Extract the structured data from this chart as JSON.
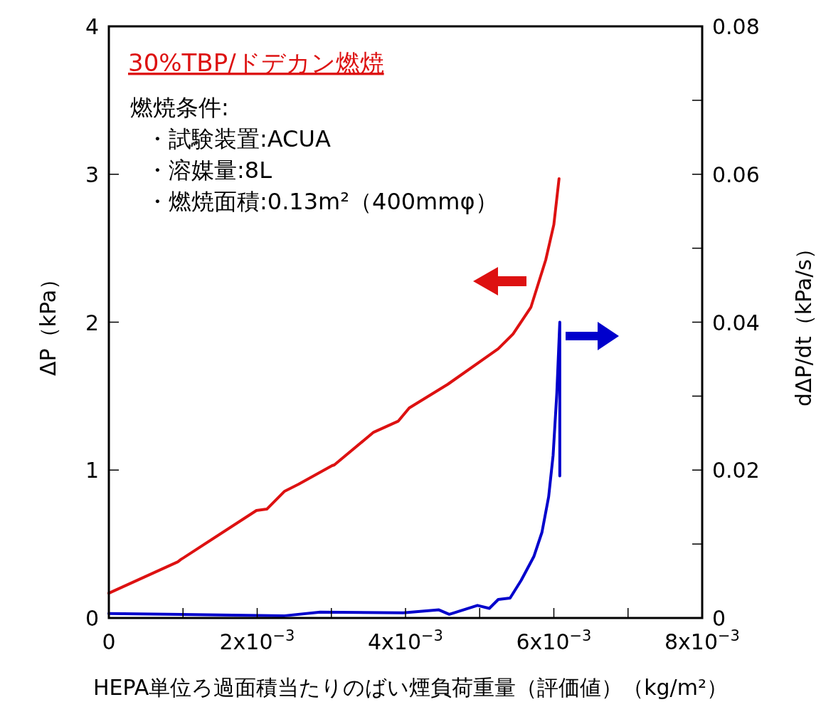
{
  "chart_data": {
    "type": "line",
    "xlabel": "HEPA単位ろ過面積当たりのばい煙負荷重量（評価値）（kg/m²）",
    "ylabel": "ΔP（kPa）",
    "y2label": "dΔP/dt（kPa/s）",
    "title": "30%TBP/ドデカン燃焼",
    "annotations": [
      "燃焼条件:",
      "・試験装置:ACUA",
      "・溶媒量:8L",
      "・燃焼面積:0.13m²（400mmφ）"
    ],
    "xlim": [
      0,
      0.008
    ],
    "xticks": [
      0,
      {
        "value": 0.001,
        "label": null
      },
      {
        "value": 0.002,
        "label": "2x10$^{−3}$"
      },
      {
        "value": 0.003,
        "label": null
      },
      {
        "value": 0.004,
        "label": "4x10$^{−3}$"
      },
      {
        "value": 0.005,
        "label": null
      },
      {
        "value": 0.006,
        "label": "6x10$^{−3}$"
      },
      {
        "value": 0.007,
        "label": null
      },
      {
        "value": 0.008,
        "label": "8x10$^{−3}$"
      }
    ],
    "ylim": [
      0,
      4
    ],
    "yticks": [
      0,
      1,
      2,
      3,
      4
    ],
    "y2lim": [
      0,
      0.08
    ],
    "y2ticks": [
      0,
      {
        "value": 0.01,
        "label": null
      },
      0.02,
      {
        "value": 0.03,
        "label": null
      },
      0.04,
      {
        "value": 0.05,
        "label": null
      },
      0.06,
      {
        "value": 0.07,
        "label": null
      },
      0.08
    ],
    "grid": false,
    "marker": "none",
    "line_style": "solid",
    "series": [
      {
        "color": "#dd1111",
        "x": [
          0,
          0.00093,
          0.00097,
          0.00199,
          0.00213,
          0.00237,
          0.00256,
          0.00301,
          0.00304,
          0.00357,
          0.0039,
          0.00405,
          0.00457,
          0.00525,
          0.00545,
          0.00569,
          0.00589,
          0.006,
          0.00607
        ],
        "values": [
          0.168,
          0.38,
          0.395,
          0.727,
          0.736,
          0.857,
          0.905,
          1.03,
          1.035,
          1.256,
          1.33,
          1.42,
          1.58,
          1.82,
          1.92,
          2.1,
          2.42,
          2.66,
          2.97
        ]
      },
      {
        "color": "#0000cc",
        "axis": "y2",
        "x": [
          0,
          0.00237,
          0.00285,
          0.00397,
          0.00445,
          0.00459,
          0.00497,
          0.00513,
          0.00525,
          0.00541,
          0.00556,
          0.00573,
          0.00584,
          0.00593,
          0.00599,
          0.00604,
          0.00608,
          0.00608
        ],
        "values": [
          0.0006,
          0.0003,
          0.0008,
          0.0007,
          0.0011,
          0.0005,
          0.0017,
          0.0013,
          0.0025,
          0.0027,
          0.0051,
          0.0083,
          0.0116,
          0.0164,
          0.022,
          0.0304,
          0.04,
          0.0192
        ]
      }
    ]
  }
}
